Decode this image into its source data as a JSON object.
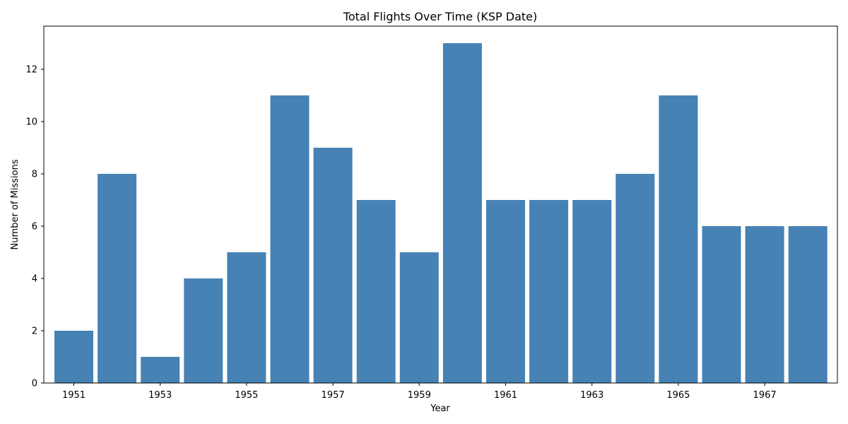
{
  "chart_data": {
    "type": "bar",
    "title": "Total Flights Over Time (KSP Date)",
    "xlabel": "Year",
    "ylabel": "Number of Missions",
    "categories": [
      "1951",
      "1952",
      "1953",
      "1954",
      "1955",
      "1956",
      "1957",
      "1958",
      "1959",
      "1960",
      "1961",
      "1962",
      "1963",
      "1964",
      "1965",
      "1966",
      "1967",
      "1968"
    ],
    "values": [
      2,
      8,
      1,
      4,
      5,
      11,
      9,
      7,
      5,
      13,
      7,
      7,
      7,
      8,
      11,
      6,
      6,
      6
    ],
    "x_tick_labels": [
      "1951",
      "1953",
      "1955",
      "1957",
      "1959",
      "1961",
      "1963",
      "1965",
      "1967"
    ],
    "y_ticks": [
      0,
      2,
      4,
      6,
      8,
      10,
      12
    ],
    "ylim": [
      0,
      13.65
    ],
    "bar_color": "#4682b4",
    "grid": false,
    "legend": "none"
  }
}
